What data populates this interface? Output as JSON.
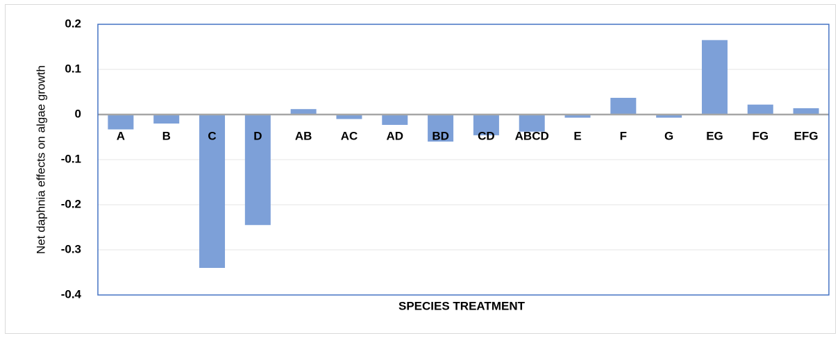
{
  "chart_data": {
    "type": "bar",
    "xlabel": "SPECIES TREATMENT",
    "ylabel": "Net daphnia effects on algae growth",
    "categories": [
      "A",
      "B",
      "C",
      "D",
      "AB",
      "AC",
      "AD",
      "BD",
      "CD",
      "ABCD",
      "E",
      "F",
      "G",
      "EG",
      "FG",
      "EFG"
    ],
    "values": [
      -0.033,
      -0.02,
      -0.34,
      -0.245,
      0.012,
      -0.01,
      -0.023,
      -0.06,
      -0.046,
      -0.038,
      -0.007,
      0.037,
      -0.007,
      0.165,
      0.022,
      0.014
    ],
    "color": "#7da0d8",
    "ylim": [
      -0.4,
      0.2
    ],
    "yticks": [
      -0.4,
      -0.3,
      -0.2,
      -0.1,
      0,
      0.1,
      0.2
    ],
    "grid": true
  }
}
